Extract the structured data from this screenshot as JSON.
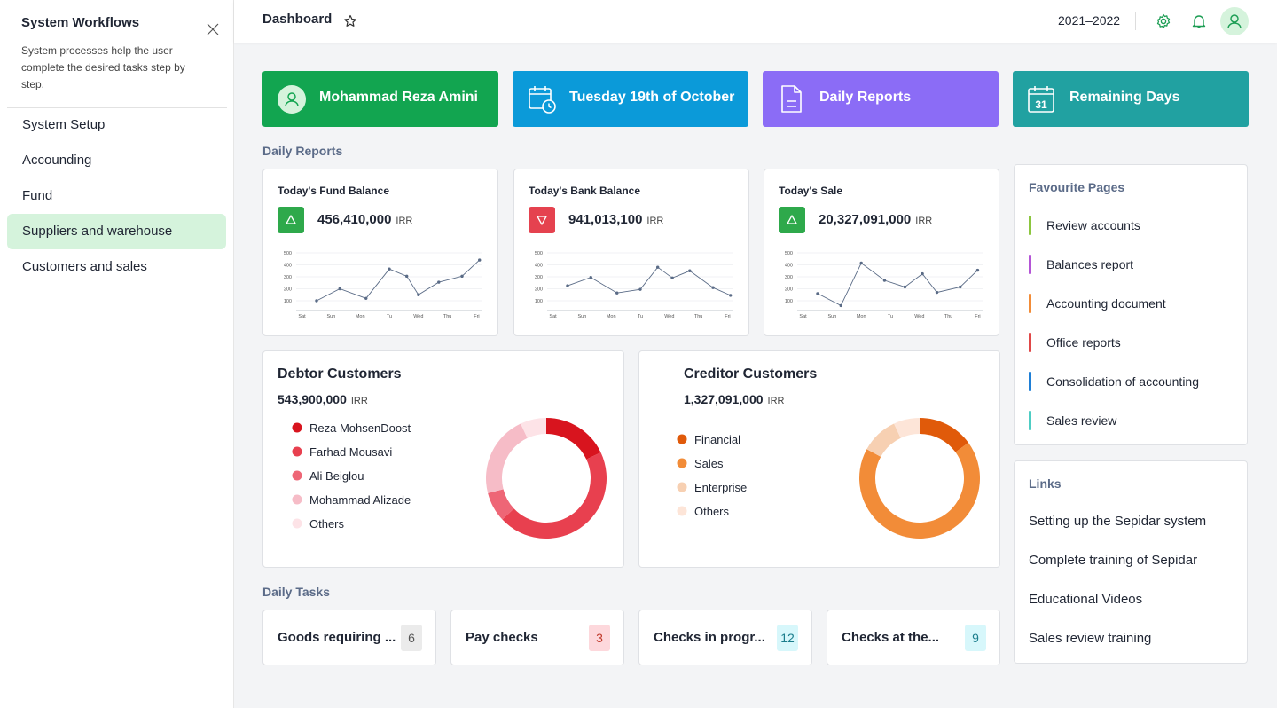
{
  "sidebar": {
    "title": "System Workflows",
    "description": "System processes help the user complete the desired tasks step by step.",
    "menu": [
      "System Setup",
      "Accounding",
      "Fund",
      "Suppliers and warehouse",
      "Customers and sales"
    ],
    "active": 3
  },
  "header": {
    "title": "Dashboard",
    "period": "2021–2022"
  },
  "cards": [
    {
      "label": "Mohammad Reza Amini"
    },
    {
      "label": "Tuesday 19th of October"
    },
    {
      "label": "Daily Reports"
    },
    {
      "label": "Remaining Days",
      "icon_text": "31"
    }
  ],
  "sections": {
    "reports": "Daily Reports",
    "tasks": "Daily Tasks"
  },
  "chart_data": [
    {
      "type": "line",
      "title": "Today's Fund Balance",
      "total": "456,410,000",
      "unit": "IRR",
      "trend": "up",
      "color": "#5a6b86",
      "x": [
        0.5,
        1.3,
        2.2,
        3.0,
        3.6,
        4.0,
        4.7,
        5.5,
        6.1
      ],
      "values": [
        100,
        200,
        120,
        365,
        305,
        150,
        255,
        305,
        440
      ],
      "xlim": [
        -0.2,
        6.2
      ],
      "xticks": [
        {
          "value": 0,
          "label": "Sat"
        },
        {
          "value": 1,
          "label": "Sun"
        },
        {
          "value": 2,
          "label": "Mon"
        },
        {
          "value": 3,
          "label": "Tu"
        },
        {
          "value": 4,
          "label": "Wed"
        },
        {
          "value": 5,
          "label": "Thu"
        },
        {
          "value": 6,
          "label": "Fri"
        }
      ],
      "ylim": [
        0,
        500
      ],
      "yticks": [
        100,
        200,
        300,
        400,
        500
      ],
      "grid": true
    },
    {
      "type": "line",
      "title": "Today's Bank Balance",
      "total": "941,013,100",
      "unit": "IRR",
      "trend": "down",
      "color": "#5a6b86",
      "x": [
        0.5,
        1.3,
        2.2,
        3.0,
        3.6,
        4.1,
        4.7,
        5.5,
        6.1
      ],
      "values": [
        225,
        295,
        165,
        195,
        380,
        290,
        350,
        210,
        145
      ],
      "xlim": [
        -0.2,
        6.2
      ],
      "xticks": [
        {
          "value": 0,
          "label": "Sat"
        },
        {
          "value": 1,
          "label": "Sun"
        },
        {
          "value": 2,
          "label": "Mon"
        },
        {
          "value": 3,
          "label": "Tu"
        },
        {
          "value": 4,
          "label": "Wed"
        },
        {
          "value": 5,
          "label": "Thu"
        },
        {
          "value": 6,
          "label": "Fri"
        }
      ],
      "ylim": [
        0,
        500
      ],
      "yticks": [
        100,
        200,
        300,
        400,
        500
      ],
      "grid": true
    },
    {
      "type": "line",
      "title": "Today's Sale",
      "total": "20,327,091,000",
      "unit": "IRR",
      "trend": "up",
      "color": "#5a6b86",
      "x": [
        0.5,
        1.3,
        2.0,
        2.8,
        3.5,
        4.1,
        4.6,
        5.4,
        6.0
      ],
      "values": [
        160,
        60,
        415,
        270,
        215,
        325,
        170,
        215,
        355
      ],
      "xlim": [
        -0.2,
        6.2
      ],
      "xticks": [
        {
          "value": 0,
          "label": "Sat"
        },
        {
          "value": 1,
          "label": "Sun"
        },
        {
          "value": 2,
          "label": "Mon"
        },
        {
          "value": 3,
          "label": "Tu"
        },
        {
          "value": 4,
          "label": "Wed"
        },
        {
          "value": 5,
          "label": "Thu"
        },
        {
          "value": 6,
          "label": "Fri"
        }
      ],
      "ylim": [
        0,
        500
      ],
      "yticks": [
        100,
        200,
        300,
        400,
        500
      ],
      "grid": true
    },
    {
      "type": "donut",
      "title": "Debtor Customers",
      "total": "543,900,000",
      "unit": "IRR",
      "categories": [
        "Reza MohsenDoost",
        "Farhad Mousavi",
        "Ali Beiglou",
        "Mohammad Alizade",
        "Others"
      ],
      "values": [
        18,
        45,
        8,
        22,
        7
      ],
      "colors": [
        "#d8141e",
        "#e8404f",
        "#ee6676",
        "#f6bcc7",
        "#fde3e7"
      ]
    },
    {
      "type": "donut",
      "title": "Creditor Customers",
      "total": "1,327,091,000",
      "unit": "IRR",
      "categories": [
        "Financial",
        "Sales",
        "Enterprise",
        "Others"
      ],
      "values": [
        15,
        68,
        10,
        7
      ],
      "colors": [
        "#e05a0a",
        "#f28c38",
        "#f7d0b2",
        "#fde5d8"
      ]
    }
  ],
  "tasks": [
    {
      "label": "Goods requiring ...",
      "count": "6"
    },
    {
      "label": "Pay checks",
      "count": "3"
    },
    {
      "label": "Checks in progr...",
      "count": "12"
    },
    {
      "label": "Checks at the...",
      "count": "9"
    }
  ],
  "favourites": {
    "title": "Favourite Pages",
    "items": [
      {
        "label": "Review accounts",
        "color": "#8cc63f"
      },
      {
        "label": "Balances report",
        "color": "#b455d6"
      },
      {
        "label": "Accounting document",
        "color": "#f28c38"
      },
      {
        "label": "Office reports",
        "color": "#e04848"
      },
      {
        "label": "Consolidation of accounting",
        "color": "#1f7fd6"
      },
      {
        "label": "Sales review",
        "color": "#4ecdc4"
      }
    ]
  },
  "links": {
    "title": "Links",
    "items": [
      "Setting up the Sepidar system",
      "Complete training of Sepidar",
      "Educational Videos",
      "Sales review training"
    ]
  }
}
